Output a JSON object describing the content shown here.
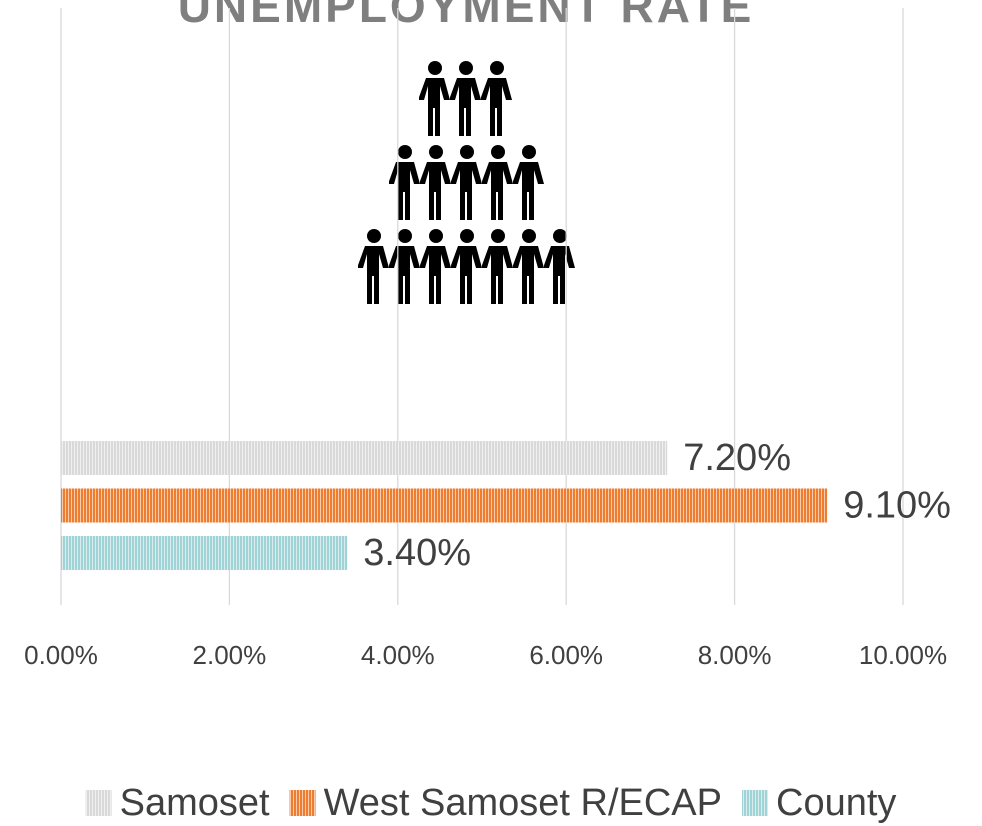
{
  "chart_data": {
    "type": "bar",
    "orientation": "horizontal",
    "title": "UNEMPLOYMENT RATE",
    "series": [
      {
        "name": "Samoset",
        "color": "#d9d9d9",
        "values": [
          7.2
        ],
        "value_labels": [
          "7.20%"
        ]
      },
      {
        "name": "West Samoset R/ECAP",
        "color": "#ed7d31",
        "values": [
          9.1
        ],
        "value_labels": [
          "9.10%"
        ]
      },
      {
        "name": "County",
        "color": "#9fd3d6",
        "values": [
          3.4
        ],
        "value_labels": [
          "3.40%"
        ]
      }
    ],
    "xlim": [
      0,
      10
    ],
    "xticks": [
      {
        "value": 0,
        "label": "0.00%"
      },
      {
        "value": 2,
        "label": "2.00%"
      },
      {
        "value": 4,
        "label": "4.00%"
      },
      {
        "value": 6,
        "label": "6.00%"
      },
      {
        "value": 8,
        "label": "8.00%"
      },
      {
        "value": 10,
        "label": "10.00%"
      }
    ],
    "grid": true,
    "legend": "bottom"
  }
}
